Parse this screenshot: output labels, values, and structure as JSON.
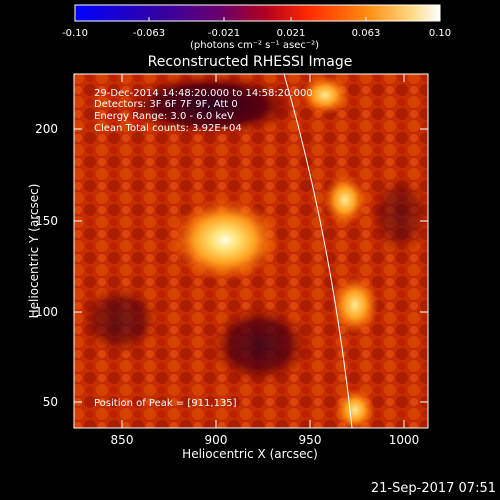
{
  "colorbar": {
    "ticks": [
      "-0.10",
      "-0.063",
      "-0.021",
      "0.021",
      "0.063",
      "0.10"
    ],
    "units_label": "(photons cm⁻² s⁻¹ asec⁻²)",
    "colors": [
      "#0000ff",
      "#2a00b0",
      "#5a0080",
      "#a00030",
      "#ff2000",
      "#ff9010",
      "#ffd070",
      "#ffffff"
    ]
  },
  "title": "Reconstructed RHESSI Image",
  "overlay": {
    "time_range": "29-Dec-2014 14:48:20.000 to 14:58:20.000",
    "detectors": "Detectors: 3F 6F 7F 9F, Att 0",
    "energy": "Energy Range: 3.0 - 6.0 keV",
    "clean": "Clean    Total counts: 3.92E+04",
    "peak": "Position of Peak = [911,135]"
  },
  "axes": {
    "xlabel": "Heliocentric X (arcsec)",
    "ylabel": "Heliocentric Y (arcsec)",
    "xticks": [
      "850",
      "900",
      "950",
      "1000"
    ],
    "yticks": [
      "200",
      "150",
      "100",
      "50"
    ]
  },
  "footer_date": "21-Sep-2017 07:51",
  "colors": {
    "limb": "#ffffff",
    "background": "#000000",
    "frame": "#ffffff"
  }
}
